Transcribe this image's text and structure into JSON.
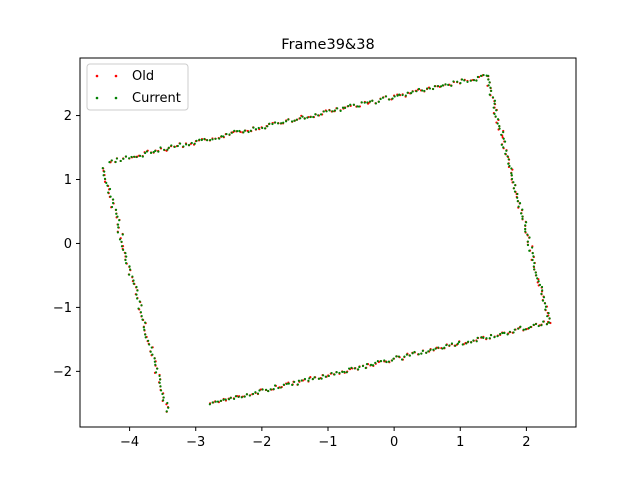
{
  "chart_data": {
    "type": "scatter",
    "title": "Frame39&38",
    "xlabel": "",
    "ylabel": "",
    "xlim": [
      -4.75,
      2.75
    ],
    "ylim": [
      -2.87,
      2.9
    ],
    "xticks": [
      -4,
      -3,
      -2,
      -1,
      0,
      1,
      2
    ],
    "yticks": [
      -2,
      -1,
      0,
      1,
      2
    ],
    "xtick_labels": [
      "−4",
      "−3",
      "−2",
      "−1",
      "0",
      "1",
      "2"
    ],
    "ytick_labels": [
      "−2",
      "−1",
      "0",
      "1",
      "2"
    ],
    "grid": false,
    "legend_position": "top-left",
    "corners": [
      [
        -4.3,
        1.28
      ],
      [
        1.4,
        2.62
      ],
      [
        2.35,
        -1.23
      ],
      [
        -2.78,
        -2.5
      ]
    ],
    "left_edge": [
      [
        -4.4,
        1.18
      ],
      [
        -3.43,
        -2.62
      ]
    ],
    "series": [
      {
        "name": "Old",
        "color": "#ff0000"
      },
      {
        "name": "Current",
        "color": "#008000"
      }
    ]
  }
}
